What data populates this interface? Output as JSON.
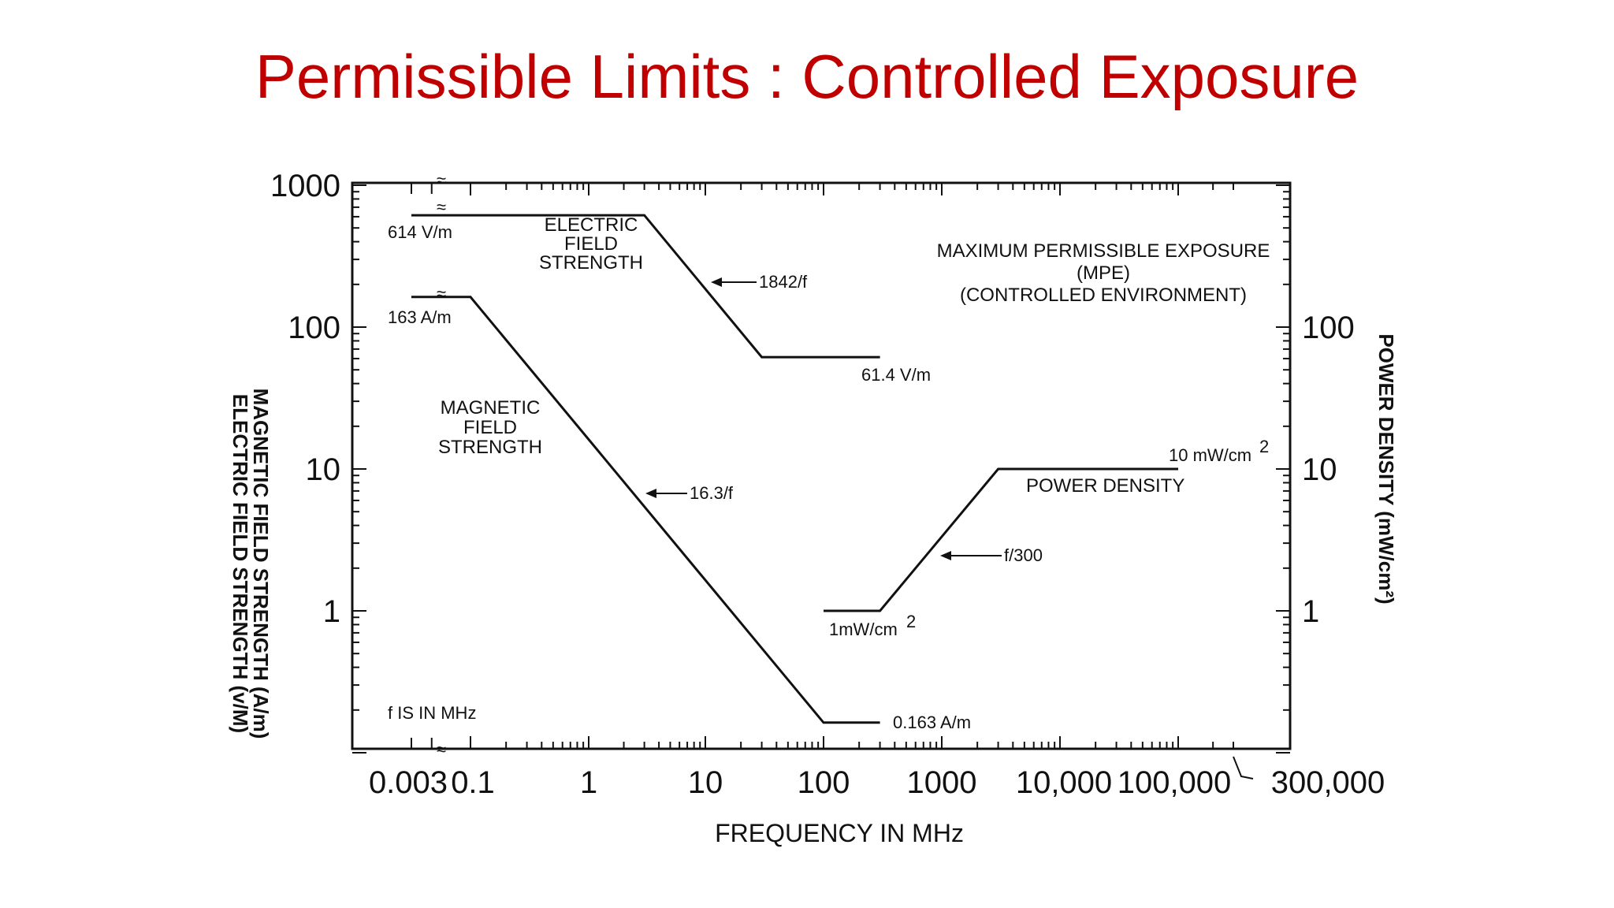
{
  "slide": {
    "title": "Permissible Limits : Controlled Exposure"
  },
  "chart_data": {
    "type": "line",
    "xscale": "log",
    "yscale": "log",
    "xlim": [
      0.003,
      300000
    ],
    "ylim": [
      0.1,
      1000
    ],
    "grid": false,
    "xlabel": "FREQUENCY IN MHz",
    "ylabel_lines": [
      "MAGNETIC FIELD STRENGTH (A/m)",
      "ELECTRIC FIELD STRENGTH (v/M)"
    ],
    "y2label": "POWER DENSITY (mW/cm²)",
    "x_ticks": [
      {
        "value": 0.003,
        "label": "0.003"
      },
      {
        "value": 0.1,
        "label": "0.1"
      },
      {
        "value": 1,
        "label": "1"
      },
      {
        "value": 10,
        "label": "10"
      },
      {
        "value": 100,
        "label": "100"
      },
      {
        "value": 1000,
        "label": "1000"
      },
      {
        "value": 10000,
        "label": "10,000"
      },
      {
        "value": 100000,
        "label": "100,000"
      },
      {
        "value": 300000,
        "label": "300,000"
      }
    ],
    "y_ticks": [
      {
        "value": 1000,
        "label": "1000"
      },
      {
        "value": 100,
        "label": "100"
      },
      {
        "value": 10,
        "label": "10"
      },
      {
        "value": 1,
        "label": "1"
      }
    ],
    "y2_ticks": [
      {
        "value": 100,
        "label": "100"
      },
      {
        "value": 10,
        "label": "10"
      },
      {
        "value": 1,
        "label": "1"
      }
    ],
    "series": [
      {
        "label": [
          "ELECTRIC",
          "FIELD",
          "STRENGTH"
        ],
        "points": [
          [
            0.003,
            614
          ],
          [
            3,
            614
          ],
          [
            30,
            61.4
          ],
          [
            300,
            61.4
          ]
        ]
      },
      {
        "label": [
          "MAGNETIC",
          "FIELD",
          "STRENGTH"
        ],
        "points": [
          [
            0.003,
            163
          ],
          [
            0.1,
            163
          ],
          [
            100,
            0.163
          ],
          [
            300,
            0.163
          ]
        ]
      },
      {
        "label": [
          "POWER DENSITY"
        ],
        "points": [
          [
            100,
            1
          ],
          [
            300,
            1
          ],
          [
            3000,
            10
          ],
          [
            100000,
            10
          ]
        ]
      }
    ],
    "annotations": {
      "e_low": "614 V/m",
      "e_slope": "1842/f",
      "e_high": "61.4 V/m",
      "h_low": "163 A/m",
      "h_slope": "16.3/f",
      "h_high": "0.163 A/m",
      "pd_low": "1mW/cm",
      "pd_slope": "f/300",
      "pd_high": "10 mW/cm",
      "unit_power": "2",
      "f_note": "f IS IN MHz",
      "mpe_lines": [
        "MAXIMUM PERMISSIBLE EXPOSURE",
        "(MPE)",
        "(CONTROLLED ENVIRONMENT)"
      ],
      "break_mark": "≈"
    }
  }
}
